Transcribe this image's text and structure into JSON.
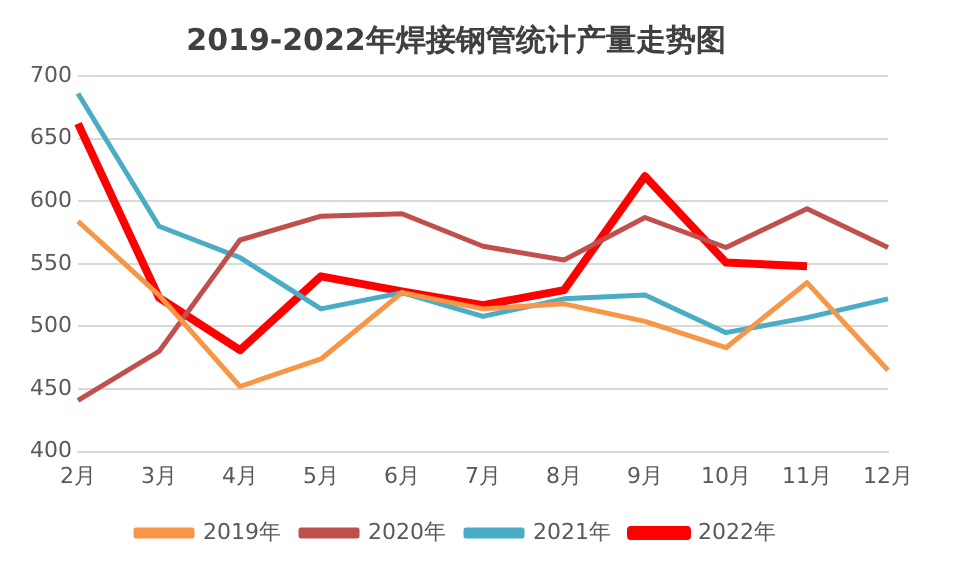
{
  "chart_data": {
    "type": "line",
    "title": "2019-2022年焊接钢管统计产量走势图",
    "categories": [
      "2月",
      "3月",
      "4月",
      "5月",
      "6月",
      "7月",
      "8月",
      "9月",
      "10月",
      "11月",
      "12月"
    ],
    "series": [
      {
        "name": "2019年",
        "color": "#f79646",
        "values": [
          584,
          525,
          452,
          474,
          527,
          514,
          518,
          504,
          483,
          535,
          465
        ]
      },
      {
        "name": "2020年",
        "color": "#c0504d",
        "values": [
          441,
          480,
          569,
          588,
          590,
          564,
          553,
          587,
          563,
          594,
          563
        ]
      },
      {
        "name": "2021年",
        "color": "#4bacc6",
        "values": [
          686,
          580,
          555,
          514,
          527,
          508,
          522,
          525,
          495,
          507,
          522
        ]
      },
      {
        "name": "2022年",
        "color": "#ff0000",
        "values": [
          662,
          523,
          481,
          540,
          528,
          517,
          529,
          620,
          551,
          548,
          null
        ]
      }
    ],
    "ylim": [
      400,
      700
    ],
    "yticks": [
      400,
      450,
      500,
      550,
      600,
      650,
      700
    ],
    "grid": "y",
    "legend": "bottom",
    "marker": "none",
    "line_style": "solid"
  }
}
